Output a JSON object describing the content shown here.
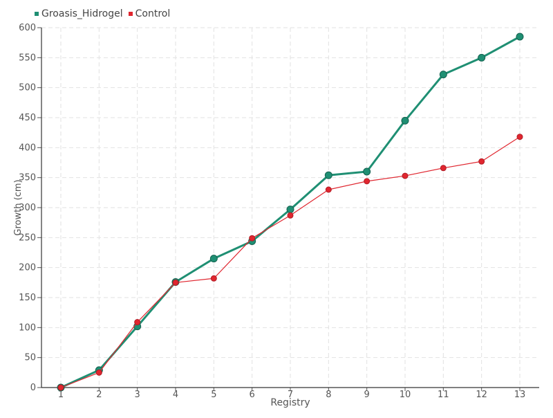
{
  "chart_data": {
    "type": "line",
    "title": "",
    "xlabel": "Registry",
    "ylabel": "Growth (cm)",
    "categories": [
      "1",
      "2",
      "3",
      "4",
      "5",
      "6",
      "7",
      "8",
      "9",
      "10",
      "11",
      "12",
      "13"
    ],
    "ylim": [
      0,
      600
    ],
    "yticks": [
      0,
      50,
      100,
      150,
      200,
      250,
      300,
      350,
      400,
      450,
      500,
      550,
      600
    ],
    "grid": true,
    "legend_position": "top-left",
    "series": [
      {
        "name": "Groasis_Hidrogel",
        "color": "#1f8f73",
        "values": [
          0,
          29,
          102,
          176,
          215,
          244,
          297,
          354,
          360,
          445,
          522,
          550,
          585
        ]
      },
      {
        "name": "Control",
        "color": "#e0262f",
        "values": [
          0,
          25,
          109,
          175,
          182,
          249,
          287,
          330,
          344,
          353,
          366,
          377,
          418
        ]
      }
    ]
  }
}
